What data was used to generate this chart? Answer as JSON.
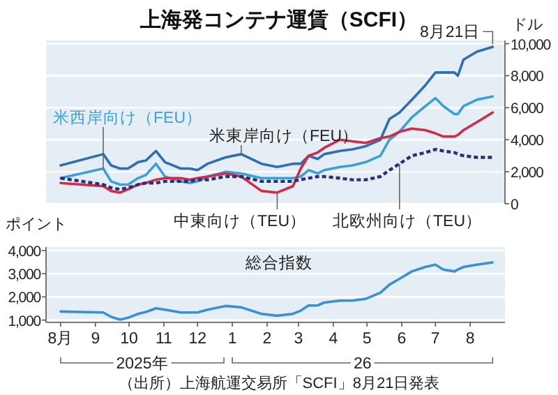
{
  "chart_data": [
    {
      "type": "line",
      "title": "上海発コンテナ運賃（SCFI）",
      "ylabel": "ドル",
      "xlim": [
        "2025-07-19",
        "2026-09-01"
      ],
      "ylim": [
        0,
        10200
      ],
      "yticks": [
        0,
        {
          "value": 2000,
          "label": "2,000"
        },
        {
          "value": 4000,
          "label": "4,000"
        },
        {
          "value": 6000,
          "label": "6,000"
        },
        {
          "value": 8000,
          "label": "8,000"
        },
        {
          "value": 10000,
          "label": "10,000"
        }
      ],
      "grid": "y",
      "tick_labels": "y",
      "x": [
        "2025-08-01",
        "2025-09-08",
        "2025-09-15",
        "2025-09-23",
        "2025-09-30",
        "2025-10-09",
        "2025-10-16",
        "2025-10-25",
        "2025-11-02",
        "2025-11-16",
        "2025-11-24",
        "2025-12-01",
        "2025-12-10",
        "2025-12-26",
        "2026-01-09",
        "2026-01-27",
        "2026-02-10",
        "2026-02-24",
        "2026-03-03",
        "2026-03-10",
        "2026-03-18",
        "2026-03-24",
        "2026-04-07",
        "2026-04-18",
        "2026-04-30",
        "2026-05-13",
        "2026-05-21",
        "2026-05-30",
        "2026-06-10",
        "2026-06-22",
        "2026-07-01",
        "2026-07-08",
        "2026-07-18",
        "2026-07-21",
        "2026-07-26",
        "2026-08-07",
        "2026-08-21"
      ],
      "series": [
        {
          "name": "米西岸向け（FEU）",
          "color": "#3aa0d8",
          "values": [
            1600,
            2200,
            1400,
            1200,
            1200,
            1600,
            1800,
            2500,
            1700,
            1400,
            1300,
            1400,
            1700,
            2000,
            1900,
            1600,
            1600,
            1600,
            1700,
            2100,
            1900,
            2100,
            2300,
            2400,
            2600,
            3000,
            4000,
            4500,
            5400,
            6100,
            6600,
            6100,
            5600,
            5600,
            6100,
            6500,
            6700
          ]
        },
        {
          "name": "米東岸向け（FEU）",
          "color": "#2f6db5",
          "values": [
            2400,
            3100,
            2400,
            2200,
            2200,
            2600,
            2700,
            3300,
            2600,
            2200,
            2200,
            2100,
            2500,
            2900,
            3100,
            2500,
            2300,
            2500,
            2500,
            3000,
            2800,
            3100,
            3300,
            3400,
            3600,
            4000,
            5300,
            5700,
            6500,
            7400,
            8200,
            8200,
            8200,
            8000,
            9000,
            9500,
            9800
          ]
        },
        {
          "name": "中東向け（TEU）",
          "color": "#d22b4a",
          "values": [
            1300,
            1100,
            800,
            700,
            900,
            1200,
            1300,
            1500,
            1600,
            1600,
            1500,
            1600,
            1700,
            1900,
            1700,
            800,
            700,
            1100,
            2200,
            3000,
            3200,
            3500,
            4000,
            3900,
            3800,
            4100,
            4200,
            4500,
            4700,
            4600,
            4400,
            4200,
            4200,
            4300,
            4600,
            5100,
            5700
          ]
        },
        {
          "name": "北欧州向け（TEU）",
          "color": "#2a2f78",
          "line_style": "dashed",
          "values": [
            1600,
            1200,
            1000,
            900,
            1000,
            1200,
            1300,
            1300,
            1400,
            1400,
            1400,
            1500,
            1500,
            1700,
            1700,
            1400,
            1400,
            1400,
            1500,
            1600,
            1700,
            1700,
            1600,
            1500,
            1500,
            1700,
            2100,
            2500,
            3000,
            3200,
            3400,
            3300,
            3200,
            3100,
            3000,
            2900,
            2900
          ]
        }
      ],
      "annotations": [
        {
          "text": "8月21日",
          "x": "2026-08-21",
          "y": 9800
        }
      ]
    },
    {
      "type": "line",
      "ylabel": "ポイント",
      "xlim": [
        "2025-07-19",
        "2026-09-01"
      ],
      "ylim": [
        900,
        4150
      ],
      "yticks": [
        {
          "value": 1000,
          "label": "1,000"
        },
        {
          "value": 2000,
          "label": "2,000"
        },
        {
          "value": 3000,
          "label": "3,000"
        },
        {
          "value": 4000,
          "label": "4,000"
        }
      ],
      "grid": "y",
      "xticks": [
        {
          "value": "2025-08-01",
          "label": "8月"
        },
        {
          "value": "2025-09-01",
          "label": "9"
        },
        {
          "value": "2025-10-01",
          "label": "10"
        },
        {
          "value": "2025-11-01",
          "label": "11"
        },
        {
          "value": "2025-12-01",
          "label": "12"
        },
        {
          "value": "2026-01-01",
          "label": "1"
        },
        {
          "value": "2026-02-01",
          "label": "2"
        },
        {
          "value": "2026-03-01",
          "label": "3"
        },
        {
          "value": "2026-04-01",
          "label": "4"
        },
        {
          "value": "2026-05-01",
          "label": "5"
        },
        {
          "value": "2026-06-01",
          "label": "6"
        },
        {
          "value": "2026-07-01",
          "label": "7"
        },
        {
          "value": "2026-08-01",
          "label": "8"
        }
      ],
      "x": [
        "2025-08-01",
        "2025-09-08",
        "2025-09-15",
        "2025-09-23",
        "2025-09-30",
        "2025-10-09",
        "2025-10-16",
        "2025-10-25",
        "2025-11-02",
        "2025-11-16",
        "2025-11-24",
        "2025-12-01",
        "2025-12-10",
        "2025-12-26",
        "2026-01-09",
        "2026-01-27",
        "2026-02-10",
        "2026-02-24",
        "2026-03-03",
        "2026-03-10",
        "2026-03-18",
        "2026-03-24",
        "2026-04-07",
        "2026-04-18",
        "2026-04-30",
        "2026-05-13",
        "2026-05-21",
        "2026-05-30",
        "2026-06-10",
        "2026-06-22",
        "2026-07-01",
        "2026-07-08",
        "2026-07-18",
        "2026-07-21",
        "2026-07-26",
        "2026-08-07",
        "2026-08-21"
      ],
      "series": [
        {
          "name": "総合指数",
          "color": "#3b8fd3",
          "values": [
            1370,
            1330,
            1140,
            1020,
            1100,
            1270,
            1350,
            1510,
            1450,
            1330,
            1330,
            1330,
            1450,
            1610,
            1550,
            1270,
            1190,
            1270,
            1410,
            1630,
            1630,
            1760,
            1840,
            1840,
            1920,
            2180,
            2530,
            2780,
            3100,
            3290,
            3390,
            3180,
            3100,
            3180,
            3290,
            3390,
            3490
          ]
        }
      ],
      "annotations": [
        "2025年",
        "26",
        "（出所）上海航運交易所「SCFI」8月21日発表"
      ]
    }
  ]
}
